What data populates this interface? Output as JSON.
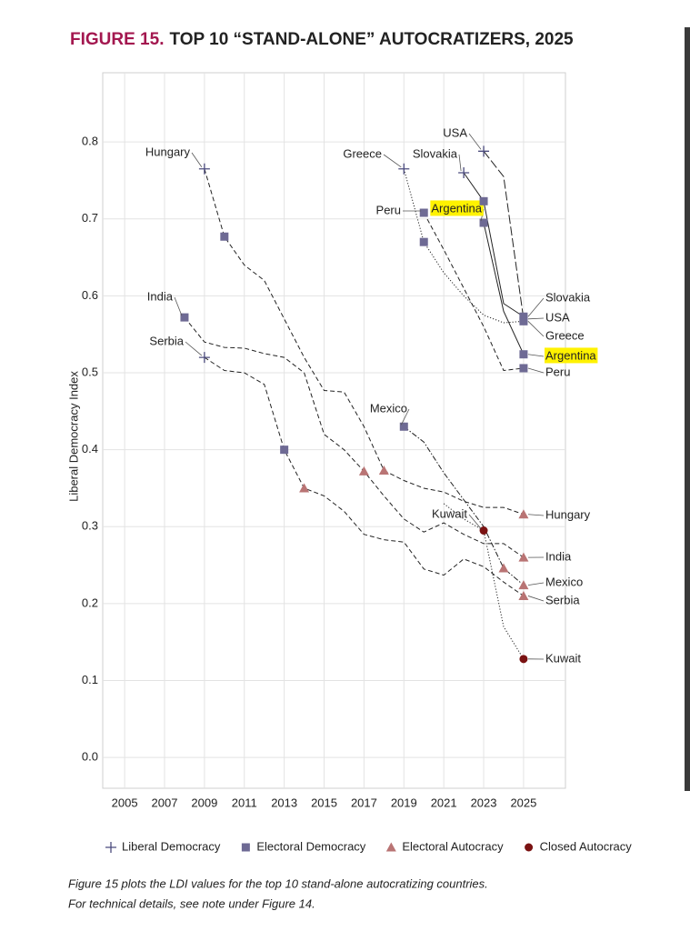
{
  "figure": {
    "label": "FIGURE 15.",
    "title": "TOP 10 “STAND-ALONE” AUTOCRATIZERS, 2025",
    "caption": [
      "Figure 15 plots the LDI values for the top 10 stand-alone autocratizing countries.",
      "For technical details, see note under Figure 14."
    ]
  },
  "chart_data": {
    "type": "line",
    "y_label": "Liberal Democracy Index",
    "xlim": [
      2003.9,
      2027.1
    ],
    "ylim": [
      -0.04,
      0.89
    ],
    "xticks": [
      2005,
      2007,
      2009,
      2011,
      2013,
      2015,
      2017,
      2019,
      2021,
      2023,
      2025
    ],
    "yticks": [
      {
        "value": 0,
        "label": "0.0"
      },
      0.1,
      0.2,
      0.3,
      0.4,
      0.5,
      0.6,
      0.7,
      0.8
    ],
    "grid": true,
    "regimes": [
      {
        "name": "Liberal Democracy",
        "symbol": "cross",
        "color": "#4b4b7d"
      },
      {
        "name": "Electoral Democracy",
        "symbol": "square",
        "color": "#6e6a94"
      },
      {
        "name": "Electoral Autocracy",
        "symbol": "triangle",
        "color": "#b97474"
      },
      {
        "name": "Closed Autocracy",
        "symbol": "circle",
        "color": "#7a1212"
      }
    ],
    "series": [
      {
        "name": "Hungary",
        "line_style": "dashed",
        "x": [
          2009,
          2010,
          2011,
          2012,
          2013,
          2014,
          2015,
          2016,
          2017,
          2018,
          2019,
          2020,
          2021,
          2022,
          2023,
          2024,
          2025
        ],
        "values": [
          0.765,
          0.677,
          0.64,
          0.62,
          0.57,
          0.52,
          0.477,
          0.475,
          0.43,
          0.373,
          0.36,
          0.35,
          0.345,
          0.333,
          0.325,
          0.325,
          0.316
        ],
        "markers": [
          {
            "x": 2009,
            "value": 0.765,
            "regime": "Liberal Democracy"
          },
          {
            "x": 2010,
            "value": 0.677,
            "regime": "Electoral Democracy"
          },
          {
            "x": 2018,
            "value": 0.373,
            "regime": "Electoral Autocracy"
          },
          {
            "x": 2025,
            "value": 0.316,
            "regime": "Electoral Autocracy"
          }
        ]
      },
      {
        "name": "India",
        "line_style": "dashed",
        "x": [
          2008,
          2009,
          2010,
          2011,
          2012,
          2013,
          2014,
          2015,
          2016,
          2017,
          2018,
          2019,
          2020,
          2021,
          2022,
          2023,
          2024,
          2025
        ],
        "values": [
          0.572,
          0.54,
          0.533,
          0.532,
          0.525,
          0.52,
          0.5,
          0.42,
          0.4,
          0.372,
          0.34,
          0.31,
          0.293,
          0.305,
          0.29,
          0.278,
          0.278,
          0.26
        ],
        "markers": [
          {
            "x": 2008,
            "value": 0.572,
            "regime": "Electoral Democracy"
          },
          {
            "x": 2017,
            "value": 0.372,
            "regime": "Electoral Autocracy"
          },
          {
            "x": 2025,
            "value": 0.26,
            "regime": "Electoral Autocracy"
          }
        ]
      },
      {
        "name": "Serbia",
        "line_style": "dashed",
        "x": [
          2009,
          2010,
          2011,
          2012,
          2013,
          2014,
          2015,
          2016,
          2017,
          2018,
          2019,
          2020,
          2021,
          2022,
          2023,
          2024,
          2025
        ],
        "values": [
          0.52,
          0.503,
          0.5,
          0.485,
          0.4,
          0.35,
          0.34,
          0.32,
          0.29,
          0.283,
          0.28,
          0.245,
          0.237,
          0.258,
          0.248,
          0.228,
          0.21
        ],
        "markers": [
          {
            "x": 2009,
            "value": 0.52,
            "regime": "Liberal Democracy"
          },
          {
            "x": 2013,
            "value": 0.4,
            "regime": "Electoral Democracy"
          },
          {
            "x": 2014,
            "value": 0.35,
            "regime": "Electoral Autocracy"
          },
          {
            "x": 2025,
            "value": 0.21,
            "regime": "Electoral Autocracy"
          }
        ]
      },
      {
        "name": "Mexico",
        "line_style": "dashdot",
        "x": [
          2019,
          2020,
          2021,
          2022,
          2023,
          2024,
          2025
        ],
        "values": [
          0.43,
          0.41,
          0.37,
          0.335,
          0.3,
          0.246,
          0.224
        ],
        "markers": [
          {
            "x": 2019,
            "value": 0.43,
            "regime": "Electoral Democracy"
          },
          {
            "x": 2024,
            "value": 0.246,
            "regime": "Electoral Autocracy"
          },
          {
            "x": 2025,
            "value": 0.224,
            "regime": "Electoral Autocracy"
          }
        ]
      },
      {
        "name": "Kuwait",
        "line_style": "dotted",
        "x": [
          2021,
          2022,
          2023,
          2024,
          2025
        ],
        "values": [
          0.33,
          0.31,
          0.295,
          0.17,
          0.128
        ],
        "markers": [
          {
            "x": 2023,
            "value": 0.295,
            "regime": "Closed Autocracy"
          },
          {
            "x": 2025,
            "value": 0.128,
            "regime": "Closed Autocracy"
          }
        ]
      },
      {
        "name": "Greece",
        "line_style": "dotted",
        "x": [
          2019,
          2020,
          2021,
          2022,
          2023,
          2024,
          2025
        ],
        "values": [
          0.765,
          0.67,
          0.63,
          0.6,
          0.575,
          0.565,
          0.567
        ],
        "markers": [
          {
            "x": 2019,
            "value": 0.765,
            "regime": "Liberal Democracy"
          },
          {
            "x": 2020,
            "value": 0.67,
            "regime": "Electoral Democracy"
          },
          {
            "x": 2025,
            "value": 0.567,
            "regime": "Electoral Democracy"
          }
        ]
      },
      {
        "name": "Peru",
        "line_style": "dashed",
        "x": [
          2020,
          2021,
          2022,
          2023,
          2024,
          2025
        ],
        "values": [
          0.708,
          0.66,
          0.61,
          0.56,
          0.503,
          0.506
        ],
        "markers": [
          {
            "x": 2020,
            "value": 0.708,
            "regime": "Electoral Democracy"
          },
          {
            "x": 2025,
            "value": 0.506,
            "regime": "Electoral Democracy"
          }
        ]
      },
      {
        "name": "Argentina",
        "line_style": "solid",
        "highlight": true,
        "x": [
          2023,
          2024,
          2025
        ],
        "values": [
          0.695,
          0.58,
          0.524
        ],
        "markers": [
          {
            "x": 2023,
            "value": 0.695,
            "regime": "Electoral Democracy"
          },
          {
            "x": 2025,
            "value": 0.524,
            "regime": "Electoral Democracy"
          }
        ]
      },
      {
        "name": "Slovakia",
        "line_style": "solid",
        "x": [
          2022,
          2023,
          2024,
          2025
        ],
        "values": [
          0.76,
          0.723,
          0.59,
          0.573
        ],
        "markers": [
          {
            "x": 2022,
            "value": 0.76,
            "regime": "Liberal Democracy"
          },
          {
            "x": 2023,
            "value": 0.723,
            "regime": "Electoral Democracy"
          },
          {
            "x": 2025,
            "value": 0.573,
            "regime": "Electoral Democracy"
          }
        ]
      },
      {
        "name": "USA",
        "line_style": "longdash",
        "x": [
          2023,
          2024,
          2025
        ],
        "values": [
          0.788,
          0.755,
          0.57
        ],
        "markers": [
          {
            "x": 2023,
            "value": 0.788,
            "regime": "Liberal Democracy"
          },
          {
            "x": 2025,
            "value": 0.57,
            "regime": "Electoral Democracy"
          }
        ]
      }
    ]
  }
}
